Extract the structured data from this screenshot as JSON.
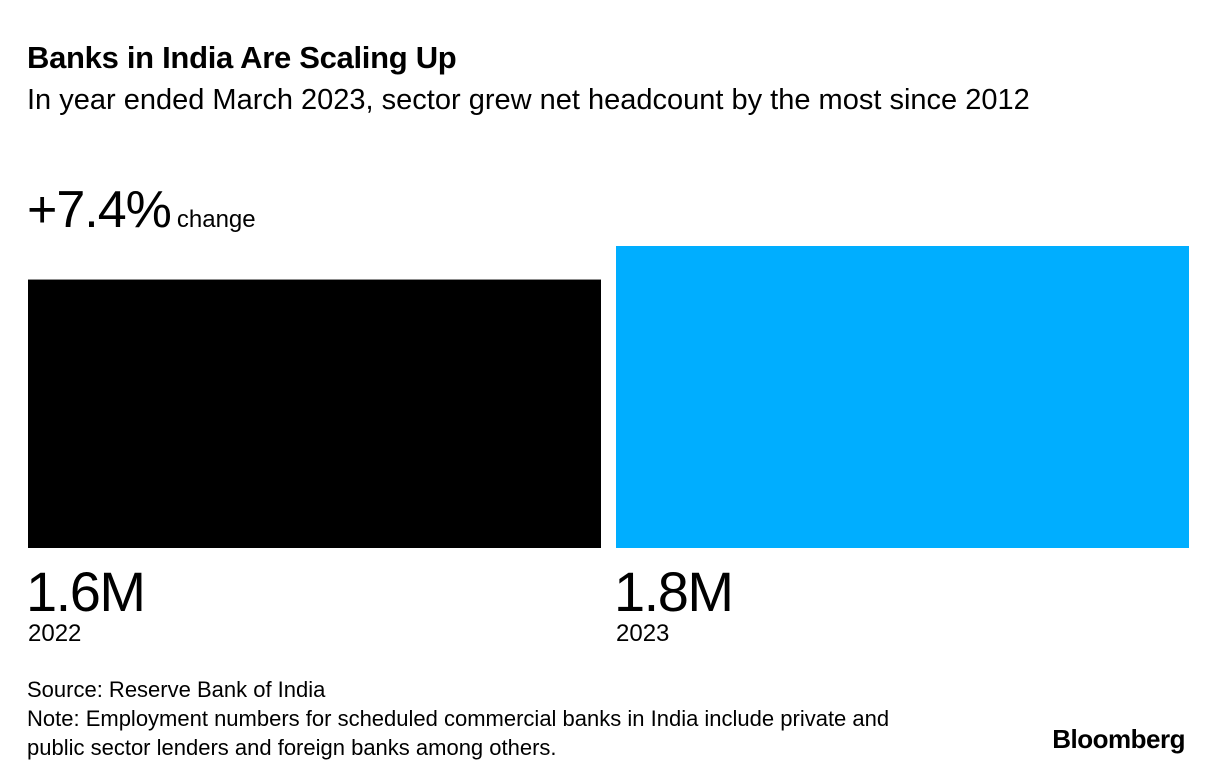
{
  "chart_data": {
    "type": "bar",
    "title": "Banks in India Are Scaling Up",
    "subtitle": "In year ended March 2023, sector grew net headcount by the most since 2012",
    "change": {
      "value": "+7.4%",
      "label": "change"
    },
    "categories": [
      "2022",
      "2023"
    ],
    "values": [
      1.6,
      1.8
    ],
    "value_labels": [
      "1.6M",
      "1.8M"
    ],
    "unit": "M",
    "colors": [
      "#000000",
      "#00aeff"
    ],
    "xlabel": "",
    "ylabel": "",
    "grid": false,
    "source": "Source: Reserve Bank of India",
    "note": "Note: Employment numbers for scheduled commercial banks in India include private and public sector lenders and foreign banks among others.",
    "brand": "Bloomberg"
  }
}
